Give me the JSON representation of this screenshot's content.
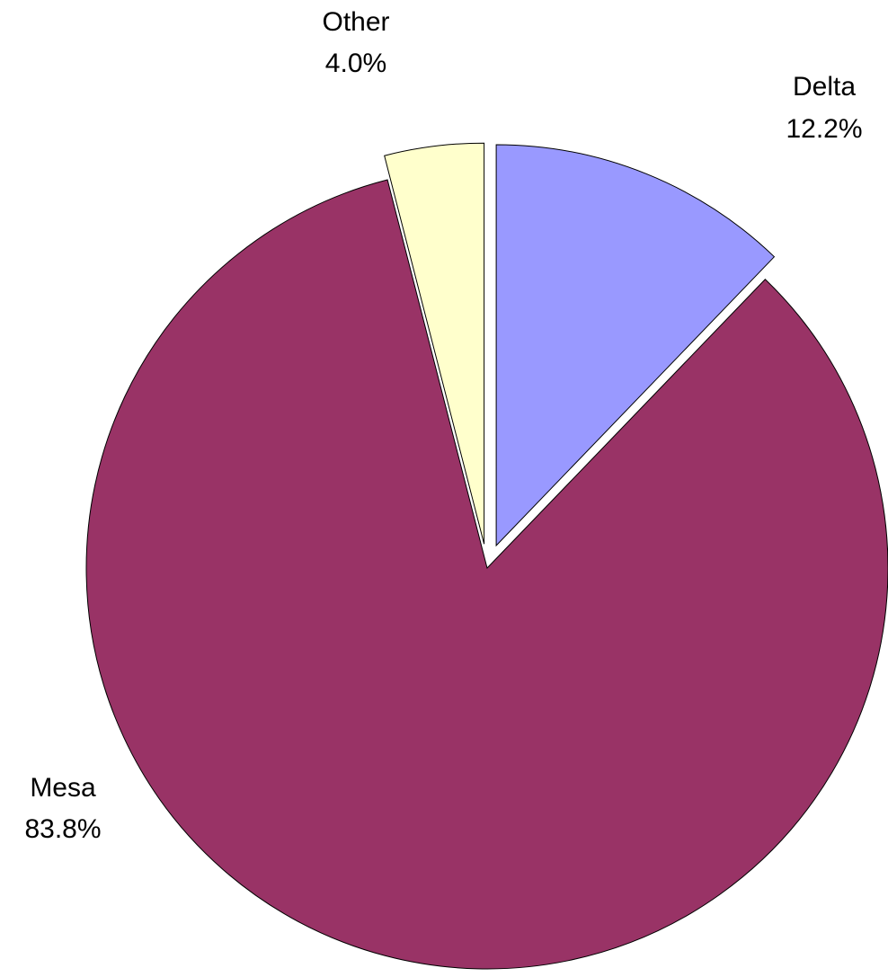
{
  "chart_data": {
    "type": "pie",
    "exploded": true,
    "start": "12 o'clock",
    "direction": "clockwise",
    "slices": [
      {
        "label": "Delta",
        "value": 12.2,
        "value_label": "12.2%",
        "color": "#9999ff"
      },
      {
        "label": "Mesa",
        "value": 83.8,
        "value_label": "83.8%",
        "color": "#993366"
      },
      {
        "label": "Other",
        "value": 4.0,
        "value_label": "4.0%",
        "color": "#ffffcc"
      }
    ]
  }
}
